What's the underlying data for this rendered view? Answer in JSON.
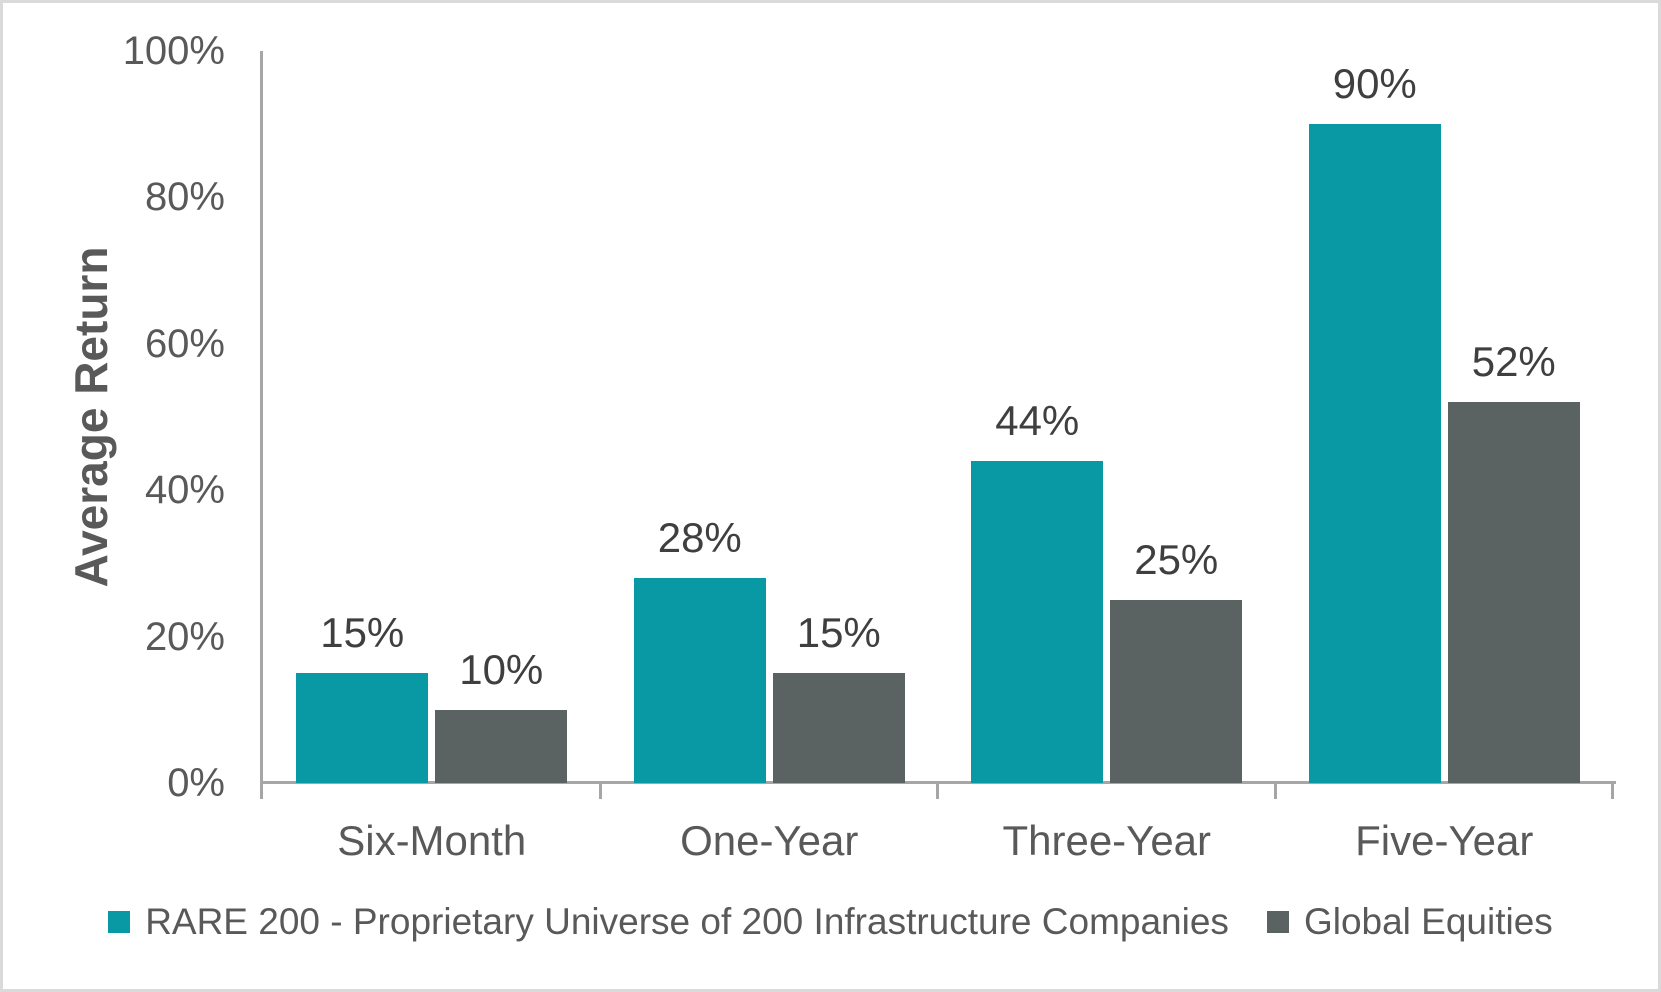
{
  "colors": {
    "series1": "#0899A4",
    "series2": "#5A6362",
    "axis_line": "#A6A6A6",
    "tick_text": "#595959",
    "value_label_text": "#3F3F3F",
    "frame_border": "#DADADA",
    "background": "#FFFFFF"
  },
  "chart_data": {
    "type": "bar",
    "title": "",
    "xlabel": "",
    "ylabel": "Average Return",
    "categories": [
      "Six-Month",
      "One-Year",
      "Three-Year",
      "Five-Year"
    ],
    "series": [
      {
        "name": "RARE 200 - Proprietary Universe of 200 Infrastructure Companies",
        "color": "#0899A4",
        "values": [
          15,
          28,
          44,
          90
        ],
        "value_labels": [
          "15%",
          "28%",
          "44%",
          "90%"
        ]
      },
      {
        "name": "Global Equities",
        "color": "#5A6362",
        "values": [
          10,
          15,
          25,
          52
        ],
        "value_labels": [
          "10%",
          "15%",
          "25%",
          "52%"
        ]
      }
    ],
    "ylim": [
      0,
      100
    ],
    "y_ticks": [
      "0%",
      "20%",
      "40%",
      "60%",
      "80%",
      "100%"
    ],
    "y_tick_values": [
      0,
      20,
      40,
      60,
      80,
      100
    ],
    "grid": false,
    "legend_position": "bottom",
    "value_labels_shown": true
  }
}
